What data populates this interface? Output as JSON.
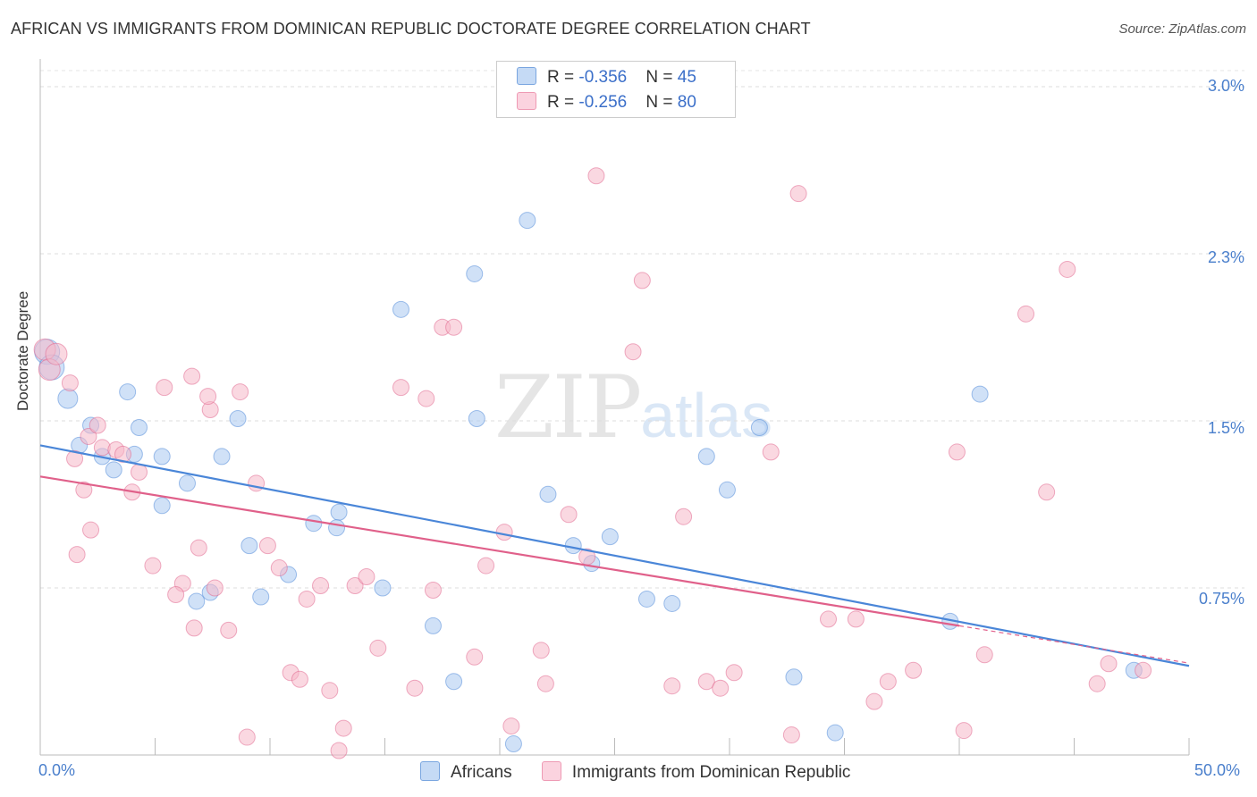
{
  "header": {
    "title": "AFRICAN VS IMMIGRANTS FROM DOMINICAN REPUBLIC DOCTORATE DEGREE CORRELATION CHART",
    "source": "Source: ZipAtlas.com"
  },
  "watermark": {
    "zip": "ZIP",
    "atlas": "atlas"
  },
  "legend": {
    "rows": [
      {
        "r_label": "R = ",
        "r_value": "-0.356",
        "n_label": "N = ",
        "n_value": "45",
        "color": "#aac8f0"
      },
      {
        "r_label": "R = ",
        "r_value": "-0.256",
        "n_label": "N = ",
        "n_value": "80",
        "color": "#f5b8c9"
      }
    ]
  },
  "bottom_legend": {
    "items": [
      {
        "label": "Africans",
        "color": "#aac8f0"
      },
      {
        "label": "Immigrants from Dominican Republic",
        "color": "#f5b8c9"
      }
    ]
  },
  "axes": {
    "ylabel": "Doctorate Degree",
    "y_ticks": [
      "3.0%",
      "2.3%",
      "1.5%",
      "0.75%"
    ],
    "x_ticks": [
      "0.0%",
      "50.0%"
    ]
  },
  "chart_data": {
    "type": "scatter",
    "xlabel": "",
    "ylabel": "Doctorate Degree",
    "xlim": [
      0,
      50
    ],
    "ylim": [
      0,
      3.0
    ],
    "grid": true,
    "series": [
      {
        "name": "Africans",
        "color": "#4a86d8",
        "fill": "#aac8f0",
        "trend": {
          "x": [
            0,
            50
          ],
          "y": [
            1.39,
            0.4
          ]
        },
        "points": [
          [
            0.3,
            1.81
          ],
          [
            0.5,
            1.74
          ],
          [
            1.2,
            1.6
          ],
          [
            1.7,
            1.39
          ],
          [
            2.2,
            1.48
          ],
          [
            2.7,
            1.34
          ],
          [
            3.2,
            1.28
          ],
          [
            3.8,
            1.63
          ],
          [
            4.3,
            1.47
          ],
          [
            4.1,
            1.35
          ],
          [
            5.3,
            1.34
          ],
          [
            5.3,
            1.12
          ],
          [
            6.4,
            1.22
          ],
          [
            6.8,
            0.69
          ],
          [
            7.9,
            1.34
          ],
          [
            9.6,
            0.71
          ],
          [
            7.4,
            0.73
          ],
          [
            8.6,
            1.51
          ],
          [
            9.1,
            0.94
          ],
          [
            10.8,
            0.81
          ],
          [
            11.9,
            1.04
          ],
          [
            13.0,
            1.09
          ],
          [
            14.9,
            0.75
          ],
          [
            15.7,
            2.0
          ],
          [
            12.9,
            1.02
          ],
          [
            17.1,
            0.58
          ],
          [
            18.0,
            0.33
          ],
          [
            18.9,
            2.16
          ],
          [
            19.0,
            1.51
          ],
          [
            20.6,
            0.05
          ],
          [
            21.2,
            2.4
          ],
          [
            22.1,
            1.17
          ],
          [
            23.2,
            0.94
          ],
          [
            24.0,
            0.86
          ],
          [
            24.8,
            0.98
          ],
          [
            26.4,
            0.7
          ],
          [
            27.5,
            0.68
          ],
          [
            29.0,
            1.34
          ],
          [
            29.9,
            1.19
          ],
          [
            31.3,
            1.47
          ],
          [
            32.8,
            0.35
          ],
          [
            34.6,
            0.1
          ],
          [
            39.6,
            0.6
          ],
          [
            47.6,
            0.38
          ],
          [
            40.9,
            1.62
          ]
        ]
      },
      {
        "name": "Immigrants from Dominican Republic",
        "color": "#e0608a",
        "fill": "#f5b8c9",
        "trend": {
          "x": [
            0,
            40
          ],
          "y": [
            1.25,
            0.58
          ]
        },
        "points": [
          [
            0.2,
            1.82
          ],
          [
            0.4,
            1.73
          ],
          [
            0.7,
            1.8
          ],
          [
            1.3,
            1.67
          ],
          [
            2.1,
            1.43
          ],
          [
            2.5,
            1.48
          ],
          [
            2.7,
            1.38
          ],
          [
            3.3,
            1.37
          ],
          [
            1.5,
            1.33
          ],
          [
            2.2,
            1.01
          ],
          [
            1.9,
            1.19
          ],
          [
            1.6,
            0.9
          ],
          [
            4.0,
            1.18
          ],
          [
            4.3,
            1.27
          ],
          [
            3.6,
            1.35
          ],
          [
            4.9,
            0.85
          ],
          [
            5.4,
            1.65
          ],
          [
            6.2,
            0.77
          ],
          [
            5.9,
            0.72
          ],
          [
            6.6,
            1.7
          ],
          [
            7.4,
            1.55
          ],
          [
            7.3,
            1.61
          ],
          [
            6.7,
            0.57
          ],
          [
            6.9,
            0.93
          ],
          [
            7.6,
            0.75
          ],
          [
            8.2,
            0.56
          ],
          [
            8.7,
            1.63
          ],
          [
            9.4,
            1.22
          ],
          [
            9.9,
            0.94
          ],
          [
            10.4,
            0.84
          ],
          [
            10.9,
            0.37
          ],
          [
            11.3,
            0.34
          ],
          [
            11.6,
            0.7
          ],
          [
            12.2,
            0.76
          ],
          [
            12.6,
            0.29
          ],
          [
            13.2,
            0.12
          ],
          [
            13.7,
            0.76
          ],
          [
            14.2,
            0.8
          ],
          [
            14.7,
            0.48
          ],
          [
            15.7,
            1.65
          ],
          [
            16.3,
            0.3
          ],
          [
            16.8,
            1.6
          ],
          [
            17.1,
            0.74
          ],
          [
            17.5,
            1.92
          ],
          [
            18.0,
            1.92
          ],
          [
            18.9,
            0.44
          ],
          [
            19.4,
            0.85
          ],
          [
            20.2,
            1.0
          ],
          [
            20.5,
            0.13
          ],
          [
            21.8,
            0.47
          ],
          [
            22.0,
            0.32
          ],
          [
            23.0,
            1.08
          ],
          [
            23.8,
            0.89
          ],
          [
            24.2,
            2.6
          ],
          [
            25.8,
            1.81
          ],
          [
            26.2,
            2.13
          ],
          [
            27.5,
            0.31
          ],
          [
            28.0,
            1.07
          ],
          [
            29.0,
            0.33
          ],
          [
            29.6,
            0.3
          ],
          [
            30.2,
            0.37
          ],
          [
            31.8,
            1.36
          ],
          [
            32.7,
            0.09
          ],
          [
            33.0,
            2.52
          ],
          [
            34.3,
            0.61
          ],
          [
            35.5,
            0.61
          ],
          [
            36.3,
            0.24
          ],
          [
            36.9,
            0.33
          ],
          [
            38.0,
            0.38
          ],
          [
            39.9,
            1.36
          ],
          [
            40.2,
            0.11
          ],
          [
            41.1,
            0.45
          ],
          [
            42.9,
            1.98
          ],
          [
            43.8,
            1.18
          ],
          [
            44.7,
            2.18
          ],
          [
            46.0,
            0.32
          ],
          [
            48.0,
            0.38
          ],
          [
            46.5,
            0.41
          ],
          [
            9.0,
            0.08
          ],
          [
            13.0,
            0.02
          ]
        ]
      }
    ]
  }
}
